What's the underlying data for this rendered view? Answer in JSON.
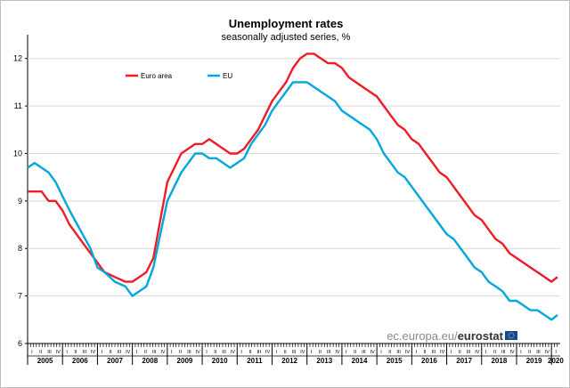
{
  "chart_data": {
    "type": "line",
    "title": "Unemployment rates",
    "subtitle": "seasonally adjusted series, %",
    "xlabel": "",
    "ylabel": "",
    "ylim": [
      6,
      12.5
    ],
    "yticks": [
      6,
      7,
      8,
      9,
      10,
      11,
      12
    ],
    "xlim": [
      2005.0,
      2020.25
    ],
    "years": [
      "2005",
      "2006",
      "2007",
      "2008",
      "2009",
      "2010",
      "2011",
      "2012",
      "2013",
      "2014",
      "2015",
      "2016",
      "2017",
      "2018",
      "2019",
      "2020"
    ],
    "quarter_labels": [
      "I",
      "II",
      "III",
      "IV"
    ],
    "grid": "horizontal",
    "legend_position": "top-left",
    "series": [
      {
        "name": "Euro area",
        "color": "#ee1c25",
        "x": [
          2005.0,
          2005.4,
          2005.6,
          2005.8,
          2006.0,
          2006.2,
          2006.5,
          2006.8,
          2007.0,
          2007.2,
          2007.5,
          2007.8,
          2008.0,
          2008.2,
          2008.4,
          2008.6,
          2008.8,
          2009.0,
          2009.2,
          2009.4,
          2009.6,
          2009.8,
          2010.0,
          2010.2,
          2010.4,
          2010.6,
          2010.8,
          2011.0,
          2011.2,
          2011.4,
          2011.6,
          2011.8,
          2012.0,
          2012.2,
          2012.4,
          2012.6,
          2012.8,
          2013.0,
          2013.2,
          2013.4,
          2013.6,
          2013.8,
          2014.0,
          2014.2,
          2014.4,
          2014.6,
          2014.8,
          2015.0,
          2015.2,
          2015.4,
          2015.6,
          2015.8,
          2016.0,
          2016.2,
          2016.4,
          2016.6,
          2016.8,
          2017.0,
          2017.2,
          2017.4,
          2017.6,
          2017.8,
          2018.0,
          2018.2,
          2018.4,
          2018.6,
          2018.8,
          2019.0,
          2019.2,
          2019.4,
          2019.6,
          2019.8,
          2020.0,
          2020.17
        ],
        "values": [
          9.2,
          9.2,
          9.0,
          9.0,
          8.8,
          8.5,
          8.2,
          7.9,
          7.7,
          7.5,
          7.4,
          7.3,
          7.3,
          7.4,
          7.5,
          7.8,
          8.6,
          9.4,
          9.7,
          10.0,
          10.1,
          10.2,
          10.2,
          10.3,
          10.2,
          10.1,
          10.0,
          10.0,
          10.1,
          10.3,
          10.5,
          10.8,
          11.1,
          11.3,
          11.5,
          11.8,
          12.0,
          12.1,
          12.1,
          12.0,
          11.9,
          11.9,
          11.8,
          11.6,
          11.5,
          11.4,
          11.3,
          11.2,
          11.0,
          10.8,
          10.6,
          10.5,
          10.3,
          10.2,
          10.0,
          9.8,
          9.6,
          9.5,
          9.3,
          9.1,
          8.9,
          8.7,
          8.6,
          8.4,
          8.2,
          8.1,
          7.9,
          7.8,
          7.7,
          7.6,
          7.5,
          7.4,
          7.3,
          7.4
        ]
      },
      {
        "name": "EU",
        "color": "#00a7dd",
        "x": [
          2005.0,
          2005.2,
          2005.4,
          2005.6,
          2005.8,
          2006.0,
          2006.2,
          2006.5,
          2006.8,
          2007.0,
          2007.2,
          2007.5,
          2007.8,
          2008.0,
          2008.2,
          2008.4,
          2008.6,
          2008.8,
          2009.0,
          2009.2,
          2009.4,
          2009.6,
          2009.8,
          2010.0,
          2010.2,
          2010.4,
          2010.6,
          2010.8,
          2011.0,
          2011.2,
          2011.4,
          2011.6,
          2011.8,
          2012.0,
          2012.2,
          2012.4,
          2012.6,
          2012.8,
          2013.0,
          2013.2,
          2013.4,
          2013.6,
          2013.8,
          2014.0,
          2014.2,
          2014.4,
          2014.6,
          2014.8,
          2015.0,
          2015.2,
          2015.4,
          2015.6,
          2015.8,
          2016.0,
          2016.2,
          2016.4,
          2016.6,
          2016.8,
          2017.0,
          2017.2,
          2017.4,
          2017.6,
          2017.8,
          2018.0,
          2018.2,
          2018.4,
          2018.6,
          2018.8,
          2019.0,
          2019.2,
          2019.4,
          2019.6,
          2019.8,
          2020.0,
          2020.17
        ],
        "values": [
          9.7,
          9.8,
          9.7,
          9.6,
          9.4,
          9.1,
          8.8,
          8.4,
          8.0,
          7.6,
          7.5,
          7.3,
          7.2,
          7.0,
          7.1,
          7.2,
          7.6,
          8.3,
          9.0,
          9.3,
          9.6,
          9.8,
          10.0,
          10.0,
          9.9,
          9.9,
          9.8,
          9.7,
          9.8,
          9.9,
          10.2,
          10.4,
          10.6,
          10.9,
          11.1,
          11.3,
          11.5,
          11.5,
          11.5,
          11.4,
          11.3,
          11.2,
          11.1,
          10.9,
          10.8,
          10.7,
          10.6,
          10.5,
          10.3,
          10.0,
          9.8,
          9.6,
          9.5,
          9.3,
          9.1,
          8.9,
          8.7,
          8.5,
          8.3,
          8.2,
          8.0,
          7.8,
          7.6,
          7.5,
          7.3,
          7.2,
          7.1,
          6.9,
          6.9,
          6.8,
          6.7,
          6.7,
          6.6,
          6.5,
          6.6
        ]
      }
    ]
  },
  "credit": {
    "prefix": "ec.europa.eu/",
    "brand": "eurostat",
    "flag_color": "#0e47a1",
    "star_color": "#ffcc00"
  }
}
